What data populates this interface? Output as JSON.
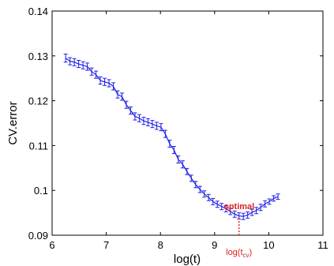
{
  "chart_data": {
    "type": "line",
    "title": "",
    "xlabel": "log(t)",
    "ylabel": "CV.error",
    "xlim": [
      6,
      11
    ],
    "ylim": [
      0.09,
      0.14
    ],
    "xticks": [
      "6",
      "7",
      "8",
      "9",
      "10",
      "11"
    ],
    "yticks": [
      "0.09",
      "0.1",
      "0.11",
      "0.12",
      "0.13",
      "0.14"
    ],
    "grid": false,
    "line_color": "#1f1fe6",
    "annotation_color": "#e02020",
    "annotations": {
      "optimal_label": "optimal",
      "marker_label_main": "log(t",
      "marker_label_sub": "cv",
      "marker_label_close": ")",
      "marker_x": 9.45
    },
    "series": [
      {
        "x": [
          6.25,
          6.33,
          6.41,
          6.49,
          6.57,
          6.65,
          6.73,
          6.81,
          6.89,
          6.97,
          7.05,
          7.13,
          7.21,
          7.29,
          7.37,
          7.45,
          7.53,
          7.61,
          7.69,
          7.77,
          7.85,
          7.93,
          8.01,
          8.09,
          8.17,
          8.25,
          8.33,
          8.41,
          8.49,
          8.57,
          8.65,
          8.73,
          8.81,
          8.89,
          8.97,
          9.05,
          9.13,
          9.21,
          9.29,
          9.37,
          9.45,
          9.53,
          9.61,
          9.69,
          9.77,
          9.85,
          9.93,
          10.01,
          10.09,
          10.17
        ],
        "y": [
          0.1295,
          0.1288,
          0.1286,
          0.1282,
          0.1279,
          0.1276,
          0.1265,
          0.1258,
          0.1245,
          0.1242,
          0.1239,
          0.1232,
          0.1214,
          0.1209,
          0.1191,
          0.1178,
          0.1165,
          0.1161,
          0.1155,
          0.1152,
          0.1148,
          0.1144,
          0.1141,
          0.1126,
          0.1104,
          0.109,
          0.1069,
          0.1058,
          0.1042,
          0.1027,
          0.1013,
          0.1002,
          0.0992,
          0.0984,
          0.0975,
          0.0969,
          0.0964,
          0.0959,
          0.0953,
          0.0947,
          0.0943,
          0.0942,
          0.0945,
          0.0951,
          0.0955,
          0.0962,
          0.097,
          0.0975,
          0.0982,
          0.0986
        ],
        "err": [
          0.0009,
          0.0008,
          0.0008,
          0.0008,
          0.0008,
          0.0008,
          0.0008,
          0.0008,
          0.0008,
          0.0008,
          0.0008,
          0.0008,
          0.0008,
          0.0008,
          0.0008,
          0.0008,
          0.0008,
          0.0008,
          0.0008,
          0.0008,
          0.0008,
          0.0008,
          0.0008,
          0.0008,
          0.0008,
          0.0008,
          0.0008,
          0.0008,
          0.0007,
          0.0007,
          0.0007,
          0.0007,
          0.0007,
          0.0007,
          0.0007,
          0.0007,
          0.0007,
          0.0007,
          0.0007,
          0.0007,
          0.0007,
          0.0007,
          0.0007,
          0.0007,
          0.0007,
          0.0007,
          0.0007,
          0.0006,
          0.0006,
          0.0006
        ]
      }
    ]
  }
}
